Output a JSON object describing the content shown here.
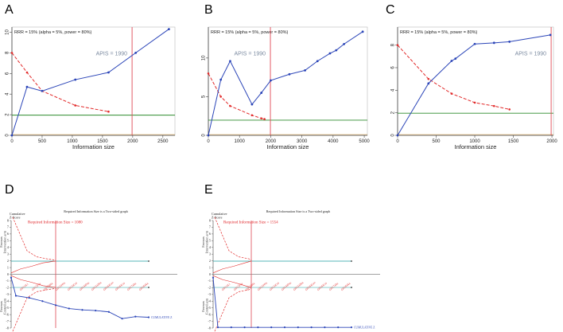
{
  "colors": {
    "cumulative": "#2b45b8",
    "boundary": "#e22a2a",
    "significance": "#2e8b2e",
    "ris_line": "#e04a55",
    "futility": "#1f9fa0",
    "axis": "#444444"
  },
  "chart_data": [
    {
      "panel": "A",
      "type": "line",
      "subtitle": "RRR = 15% (alpha = 5%, power = 80%)",
      "apis_label": "APIS = 1990",
      "xlabel": "Information size",
      "xlim": [
        0,
        2700
      ],
      "ylim": [
        0,
        10.5
      ],
      "xticks": [
        "0",
        "500",
        "1000",
        "1500",
        "2000",
        "2500"
      ],
      "xtick_values": [
        0,
        500,
        1000,
        1500,
        2000,
        2500
      ],
      "yticks": [
        "0",
        "2",
        "4",
        "6",
        "8",
        "10"
      ],
      "ytick_values": [
        0,
        2,
        4,
        6,
        8,
        10
      ],
      "ris": 1990,
      "significance_z": 1.96,
      "cumulative_z": {
        "x": [
          0,
          250,
          500,
          1050,
          1600,
          2050,
          2600
        ],
        "y": [
          0,
          4.7,
          4.3,
          5.4,
          6.1,
          8.0,
          10.3
        ]
      },
      "monitoring_boundary": {
        "x": [
          0,
          250,
          500,
          1050,
          1600
        ],
        "y": [
          8.0,
          6.1,
          4.3,
          2.9,
          2.3
        ]
      }
    },
    {
      "panel": "B",
      "type": "line",
      "subtitle": "RRR = 15% (alpha = 5%, power = 80%)",
      "apis_label": "APIS = 1990",
      "xlabel": "Information size",
      "xlim": [
        0,
        5100
      ],
      "ylim": [
        0,
        14
      ],
      "xticks": [
        "0",
        "1000",
        "2000",
        "3000",
        "4000",
        "5000"
      ],
      "xtick_values": [
        0,
        1000,
        2000,
        3000,
        4000,
        5000
      ],
      "yticks": [
        "0",
        "5",
        "10"
      ],
      "ytick_values": [
        0,
        5,
        10
      ],
      "ris": 1990,
      "significance_z": 1.96,
      "cumulative_z": {
        "x": [
          0,
          400,
          700,
          1400,
          1700,
          2000,
          2600,
          3100,
          3500,
          3900,
          4100,
          4350,
          4950
        ],
        "y": [
          0,
          7.2,
          9.6,
          4.0,
          5.5,
          7.1,
          7.9,
          8.4,
          9.6,
          10.6,
          11.0,
          11.8,
          13.4
        ]
      },
      "monitoring_boundary": {
        "x": [
          0,
          400,
          700,
          1400,
          1700,
          1800
        ],
        "y": [
          8.0,
          5.0,
          3.8,
          2.6,
          2.2,
          2.1
        ]
      }
    },
    {
      "panel": "C",
      "type": "line",
      "subtitle": "RRR = 15% (alpha = 5%, power = 80%)",
      "apis_label": "APIS = 1990",
      "xlabel": "Information size",
      "xlim": [
        0,
        2020
      ],
      "ylim": [
        0,
        9.6
      ],
      "xticks": [
        "0",
        "500",
        "1000",
        "1500",
        "2000"
      ],
      "xtick_values": [
        0,
        500,
        1000,
        1500,
        2000
      ],
      "yticks": [
        "0",
        "2",
        "4",
        "6",
        "8"
      ],
      "ytick_values": [
        0,
        2,
        4,
        6,
        8
      ],
      "ris": 1990,
      "significance_z": 1.96,
      "cumulative_z": {
        "x": [
          0,
          400,
          700,
          750,
          1000,
          1250,
          1450,
          1980
        ],
        "y": [
          0,
          4.6,
          6.6,
          6.8,
          8.1,
          8.2,
          8.3,
          8.9
        ]
      },
      "monitoring_boundary": {
        "x": [
          0,
          400,
          700,
          1000,
          1250,
          1450
        ],
        "y": [
          8.0,
          5.0,
          3.7,
          2.9,
          2.6,
          2.3
        ]
      }
    }
  ],
  "tsa_panels": [
    {
      "panel": "D",
      "title": "Required Information Size is a Two-sided graph",
      "ris_label": "Required Information Size = 1080",
      "z_label": "Cumulative\nZ-Score",
      "favours_top": "Favours\nIntervention arm",
      "favours_bottom": "Favours\nControl arm",
      "yticks": [
        "8",
        "7",
        "6",
        "5",
        "4",
        "3",
        "2",
        "1",
        "0",
        "-1",
        "-2",
        "-3",
        "-4",
        "-5",
        "-6",
        "-7",
        "-8"
      ],
      "end_label": "CUMULATIVE Z",
      "diag_labels": [
        "(2011)Li",
        "(2012)Yu",
        "(2012)Ha",
        "(2013)Wu",
        "(2013)Cui",
        "(2014)Pan",
        "(2015)Zhu",
        "(2016)Gao",
        "(2016)Liu",
        "(2017)Jin",
        "(2018)Xu"
      ],
      "cumulative_z": [
        -0.5,
        -3.2,
        -3.5,
        -4.0,
        -4.6,
        -5.1,
        -5.3,
        -5.4,
        -5.6,
        -6.6,
        -6.3,
        -6.4
      ]
    },
    {
      "panel": "E",
      "title": "Required Information Size is a Two-sided graph",
      "ris_label": "Required Information Size = 1554",
      "z_label": "Cumulative\nZ-Score",
      "favours_top": "Favours\nIntervention arm",
      "favours_bottom": "Favours\nControl arm",
      "yticks": [
        "8",
        "7",
        "6",
        "5",
        "4",
        "3",
        "2",
        "1",
        "0",
        "-1",
        "-2",
        "-3",
        "-4",
        "-5",
        "-6",
        "-7",
        "-8"
      ],
      "end_label": "CUMULATIVE Z",
      "diag_labels": [
        "(2011)Li",
        "(2012)Yu",
        "(2012)Ha",
        "(2013)Wu",
        "(2013)Cui",
        "(2014)Pan",
        "(2015)Zhu",
        "(2016)Gao",
        "(2016)Liu",
        "(2017)Jin",
        "(2018)Xu"
      ],
      "cumulative_z": [
        -0.5,
        -7.9,
        -7.9,
        -7.9,
        -7.9,
        -7.9,
        -7.9,
        -7.9,
        -7.9,
        -7.9,
        -7.9,
        -7.9
      ]
    }
  ]
}
